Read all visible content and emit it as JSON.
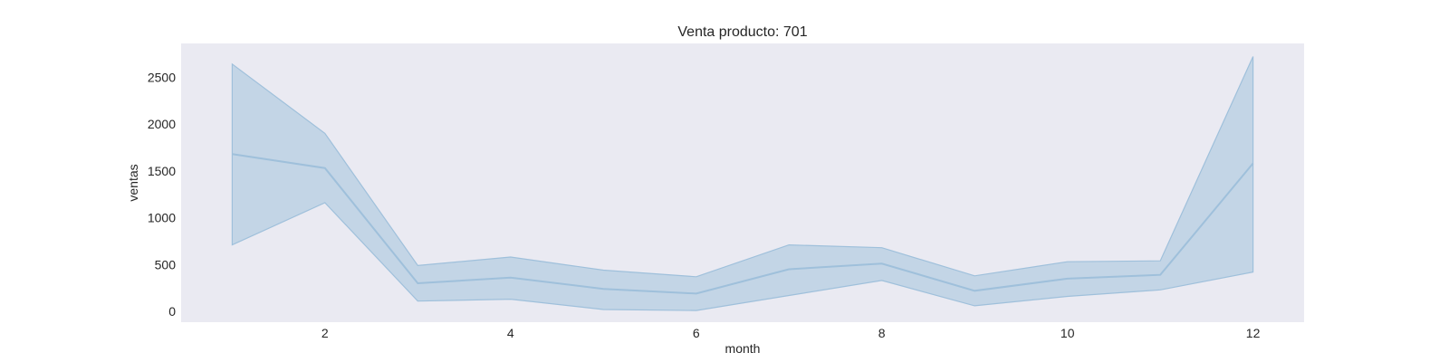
{
  "chart_data": {
    "type": "area",
    "title": "Venta producto: 701",
    "xlabel": "month",
    "ylabel": "ventas",
    "xlim": [
      0.45,
      12.55
    ],
    "ylim": [
      -115,
      2860
    ],
    "x_ticks": [
      2,
      4,
      6,
      8,
      10,
      12
    ],
    "y_ticks": [
      0,
      500,
      1000,
      1500,
      2000,
      2500
    ],
    "grid": false,
    "legend": "none",
    "x": [
      1,
      2,
      3,
      4,
      5,
      6,
      7,
      8,
      9,
      10,
      11,
      12
    ],
    "series": [
      {
        "values": [
          1680,
          1530,
          300,
          360,
          240,
          190,
          450,
          510,
          220,
          350,
          390,
          1580
        ],
        "lower": [
          710,
          1160,
          110,
          130,
          20,
          10,
          170,
          330,
          60,
          160,
          230,
          420
        ],
        "upper": [
          2640,
          1900,
          490,
          580,
          440,
          370,
          710,
          680,
          380,
          530,
          540,
          2720
        ],
        "line_color": "#9fc0db",
        "band_color": "#b5cde2"
      }
    ],
    "plot_background": "#eaeaf2"
  }
}
